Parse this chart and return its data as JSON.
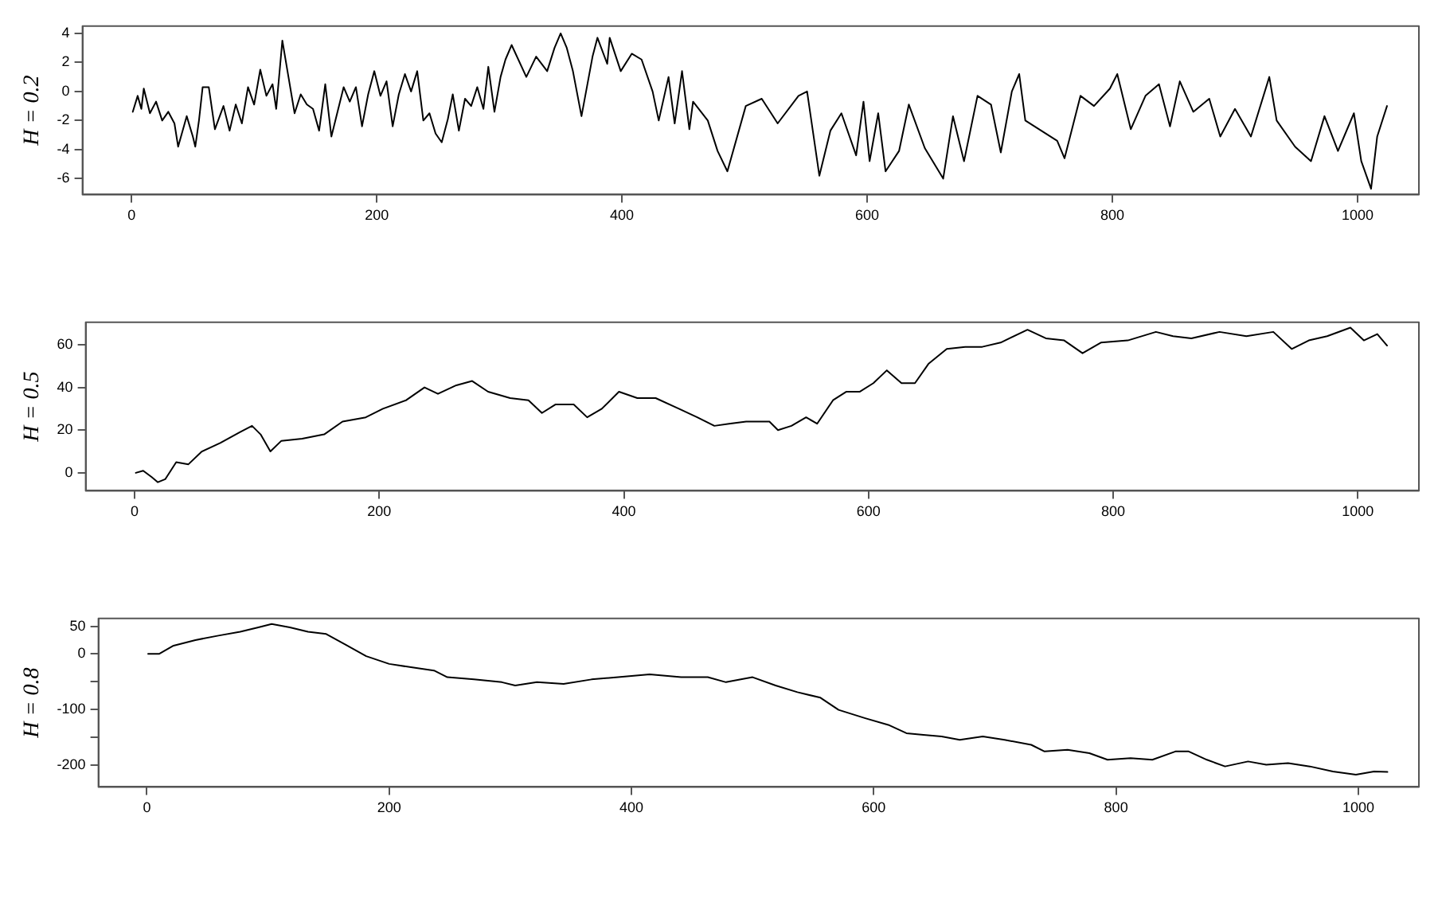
{
  "chart_data": [
    {
      "type": "line",
      "ylabel": "H = 0.2",
      "color": "#000000",
      "marker": "none",
      "line_style": "solid",
      "xlim": [
        -40,
        1050
      ],
      "ylim": [
        -7.1,
        4.5
      ],
      "xticks": [
        0,
        200,
        400,
        600,
        800,
        1000
      ],
      "yticks": [
        -6,
        -4,
        -2,
        0,
        2,
        4
      ],
      "x": [
        1,
        5,
        8,
        10,
        15,
        20,
        25,
        30,
        35,
        38,
        45,
        50,
        52,
        55,
        58,
        63,
        68,
        75,
        80,
        85,
        90,
        95,
        100,
        105,
        110,
        115,
        118,
        123,
        128,
        133,
        138,
        143,
        148,
        153,
        158,
        163,
        168,
        173,
        178,
        183,
        188,
        193,
        198,
        203,
        208,
        213,
        218,
        223,
        228,
        233,
        238,
        243,
        248,
        253,
        258,
        262,
        267,
        272,
        277,
        282,
        287,
        291,
        296,
        301,
        305,
        310,
        322,
        330,
        339,
        345,
        350,
        355,
        360,
        367,
        376,
        380,
        388,
        390,
        399,
        408,
        416,
        425,
        430,
        438,
        443,
        449,
        455,
        458,
        470,
        478,
        486,
        501,
        514,
        527,
        544,
        551,
        561,
        570,
        579,
        591,
        597,
        602,
        609,
        615,
        626,
        634,
        647,
        662,
        670,
        679,
        690,
        701,
        709,
        718,
        724,
        729,
        742,
        755,
        761,
        774,
        785,
        798,
        804,
        815,
        827,
        838,
        847,
        855,
        866,
        879,
        888,
        900,
        913,
        928,
        934,
        949,
        962,
        973,
        984,
        997,
        1003,
        1011,
        1016,
        1024
      ],
      "values": [
        -1.4,
        -0.3,
        -1.2,
        0.2,
        -1.5,
        -0.7,
        -2.0,
        -1.4,
        -2.2,
        -3.8,
        -1.7,
        -3.1,
        -3.8,
        -2.0,
        0.3,
        0.3,
        -2.6,
        -1.0,
        -2.7,
        -0.9,
        -2.2,
        0.3,
        -0.9,
        1.5,
        -0.3,
        0.5,
        -1.2,
        3.5,
        1.0,
        -1.5,
        -0.2,
        -0.9,
        -1.2,
        -2.7,
        0.5,
        -3.1,
        -1.4,
        0.3,
        -0.7,
        0.3,
        -2.4,
        -0.2,
        1.4,
        -0.3,
        0.7,
        -2.4,
        -0.2,
        1.2,
        0,
        1.4,
        -2.0,
        -1.5,
        -2.9,
        -3.5,
        -1.9,
        -0.2,
        -2.7,
        -0.5,
        -1.0,
        0.3,
        -1.2,
        1.7,
        -1.4,
        1.0,
        2.2,
        3.2,
        1.0,
        2.4,
        1.4,
        3.0,
        4.0,
        3.0,
        1.4,
        -1.7,
        2.4,
        3.7,
        1.9,
        3.7,
        1.4,
        2.6,
        2.2,
        0,
        -2.0,
        1.0,
        -2.2,
        1.4,
        -2.6,
        -0.7,
        -2.0,
        -4.1,
        -5.5,
        -1.0,
        -0.5,
        -2.2,
        -0.3,
        0,
        -5.8,
        -2.7,
        -1.5,
        -4.4,
        -0.7,
        -4.8,
        -1.5,
        -5.5,
        -4.1,
        -0.9,
        -3.9,
        -6.0,
        -1.7,
        -4.8,
        -0.3,
        -0.9,
        -4.2,
        0,
        1.2,
        -2.0,
        -2.7,
        -3.4,
        -4.6,
        -0.3,
        -1.0,
        0.2,
        1.2,
        -2.6,
        -0.3,
        0.5,
        -2.4,
        0.7,
        -1.4,
        -0.5,
        -3.1,
        -1.2,
        -3.1,
        1.0,
        -2.0,
        -3.8,
        -4.8,
        -1.7,
        -4.1,
        -1.5,
        -4.8,
        -6.7,
        -3.1,
        -1.0
      ]
    },
    {
      "type": "line",
      "ylabel": "H = 0.5",
      "color": "#000000",
      "marker": "none",
      "line_style": "solid",
      "xlim": [
        -40,
        1050
      ],
      "ylim": [
        -8.4,
        70.5
      ],
      "xticks": [
        0,
        200,
        400,
        600,
        800,
        1000
      ],
      "yticks": [
        0,
        20,
        40,
        60
      ],
      "x": [
        1,
        7,
        14,
        19,
        25,
        34,
        44,
        55,
        70,
        86,
        96,
        103,
        111,
        120,
        137,
        155,
        170,
        189,
        203,
        222,
        237,
        248,
        263,
        276,
        289,
        307,
        322,
        333,
        344,
        359,
        370,
        382,
        396,
        411,
        426,
        445,
        460,
        474,
        486,
        500,
        519,
        526,
        537,
        549,
        558,
        571,
        582,
        593,
        604,
        615,
        627,
        638,
        649,
        664,
        679,
        693,
        708,
        730,
        745,
        760,
        775,
        790,
        812,
        835,
        849,
        864,
        887,
        909,
        931,
        946,
        960,
        975,
        994,
        1005,
        1016,
        1024
      ],
      "values": [
        0,
        1,
        -2,
        -4.4,
        -3,
        5,
        4,
        10,
        14,
        19,
        22,
        18,
        10,
        15,
        16,
        18,
        24,
        26,
        30,
        34,
        40,
        37,
        41,
        43,
        38,
        35,
        34,
        28,
        32,
        32,
        26,
        30,
        38,
        35,
        35,
        30,
        26,
        22,
        23,
        24,
        24,
        20,
        22,
        26,
        23,
        34,
        38,
        38,
        42,
        48,
        42,
        42,
        51,
        58,
        59,
        59,
        61,
        67,
        63,
        62,
        56,
        61,
        62,
        66,
        64,
        63,
        66,
        64,
        66,
        58,
        62,
        64,
        68,
        62,
        65,
        59.6
      ]
    },
    {
      "type": "line",
      "ylabel": "H = 0.8",
      "color": "#000000",
      "marker": "none",
      "line_style": "solid",
      "xlim": [
        -40,
        1050
      ],
      "ylim": [
        -240,
        64
      ],
      "xticks": [
        0,
        200,
        400,
        600,
        800,
        1000
      ],
      "yticks": [
        -200,
        {
          "value": -150,
          "label": null
        },
        -100,
        {
          "value": -50,
          "label": null
        },
        0,
        50
      ],
      "x": [
        1,
        10,
        22,
        40,
        59,
        77,
        92,
        103,
        118,
        133,
        148,
        163,
        181,
        200,
        218,
        237,
        248,
        270,
        293,
        304,
        322,
        344,
        367,
        389,
        415,
        441,
        463,
        478,
        500,
        519,
        537,
        556,
        571,
        593,
        612,
        627,
        641,
        656,
        671,
        690,
        708,
        730,
        741,
        760,
        778,
        793,
        812,
        830,
        849,
        860,
        875,
        890,
        909,
        924,
        942,
        960,
        979,
        998,
        1013,
        1024
      ],
      "values": [
        0,
        0,
        15,
        25,
        33,
        40,
        48,
        54,
        48,
        40,
        36,
        18,
        -4,
        -18,
        -24,
        -30,
        -42,
        -46,
        -51,
        -57,
        -51,
        -54,
        -46,
        -42,
        -37,
        -42,
        -42,
        -51,
        -42,
        -57,
        -69,
        -79,
        -101,
        -116,
        -128,
        -143,
        -146,
        -149,
        -155,
        -149,
        -155,
        -164,
        -176,
        -173,
        -179,
        -191,
        -188,
        -191,
        -176,
        -176,
        -191,
        -203,
        -194,
        -200,
        -197,
        -203,
        -212,
        -218,
        -212,
        -213
      ]
    }
  ]
}
